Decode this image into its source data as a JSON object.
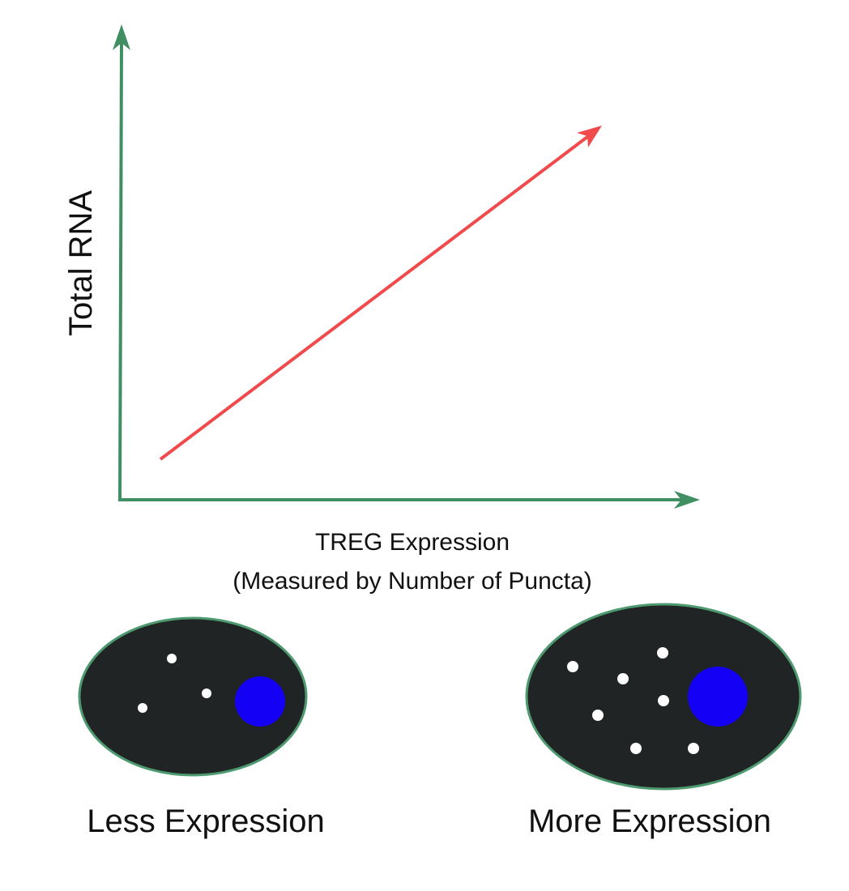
{
  "chart": {
    "y_axis_label": "Total RNA",
    "x_axis_label_line1": "TREG Expression",
    "x_axis_label_line2": "(Measured by Number of Puncta)",
    "trend": "increasing"
  },
  "cells": [
    {
      "caption": "Less Expression",
      "puncta_count": 3
    },
    {
      "caption": "More Expression",
      "puncta_count": 7
    }
  ],
  "colors": {
    "axis": "#3f8f63",
    "trend_line": "#f04a4c",
    "cell_fill": "#202424",
    "cell_outline": "#4e9a70",
    "nucleus": "#1400f5",
    "puncta": "#ffffff"
  }
}
